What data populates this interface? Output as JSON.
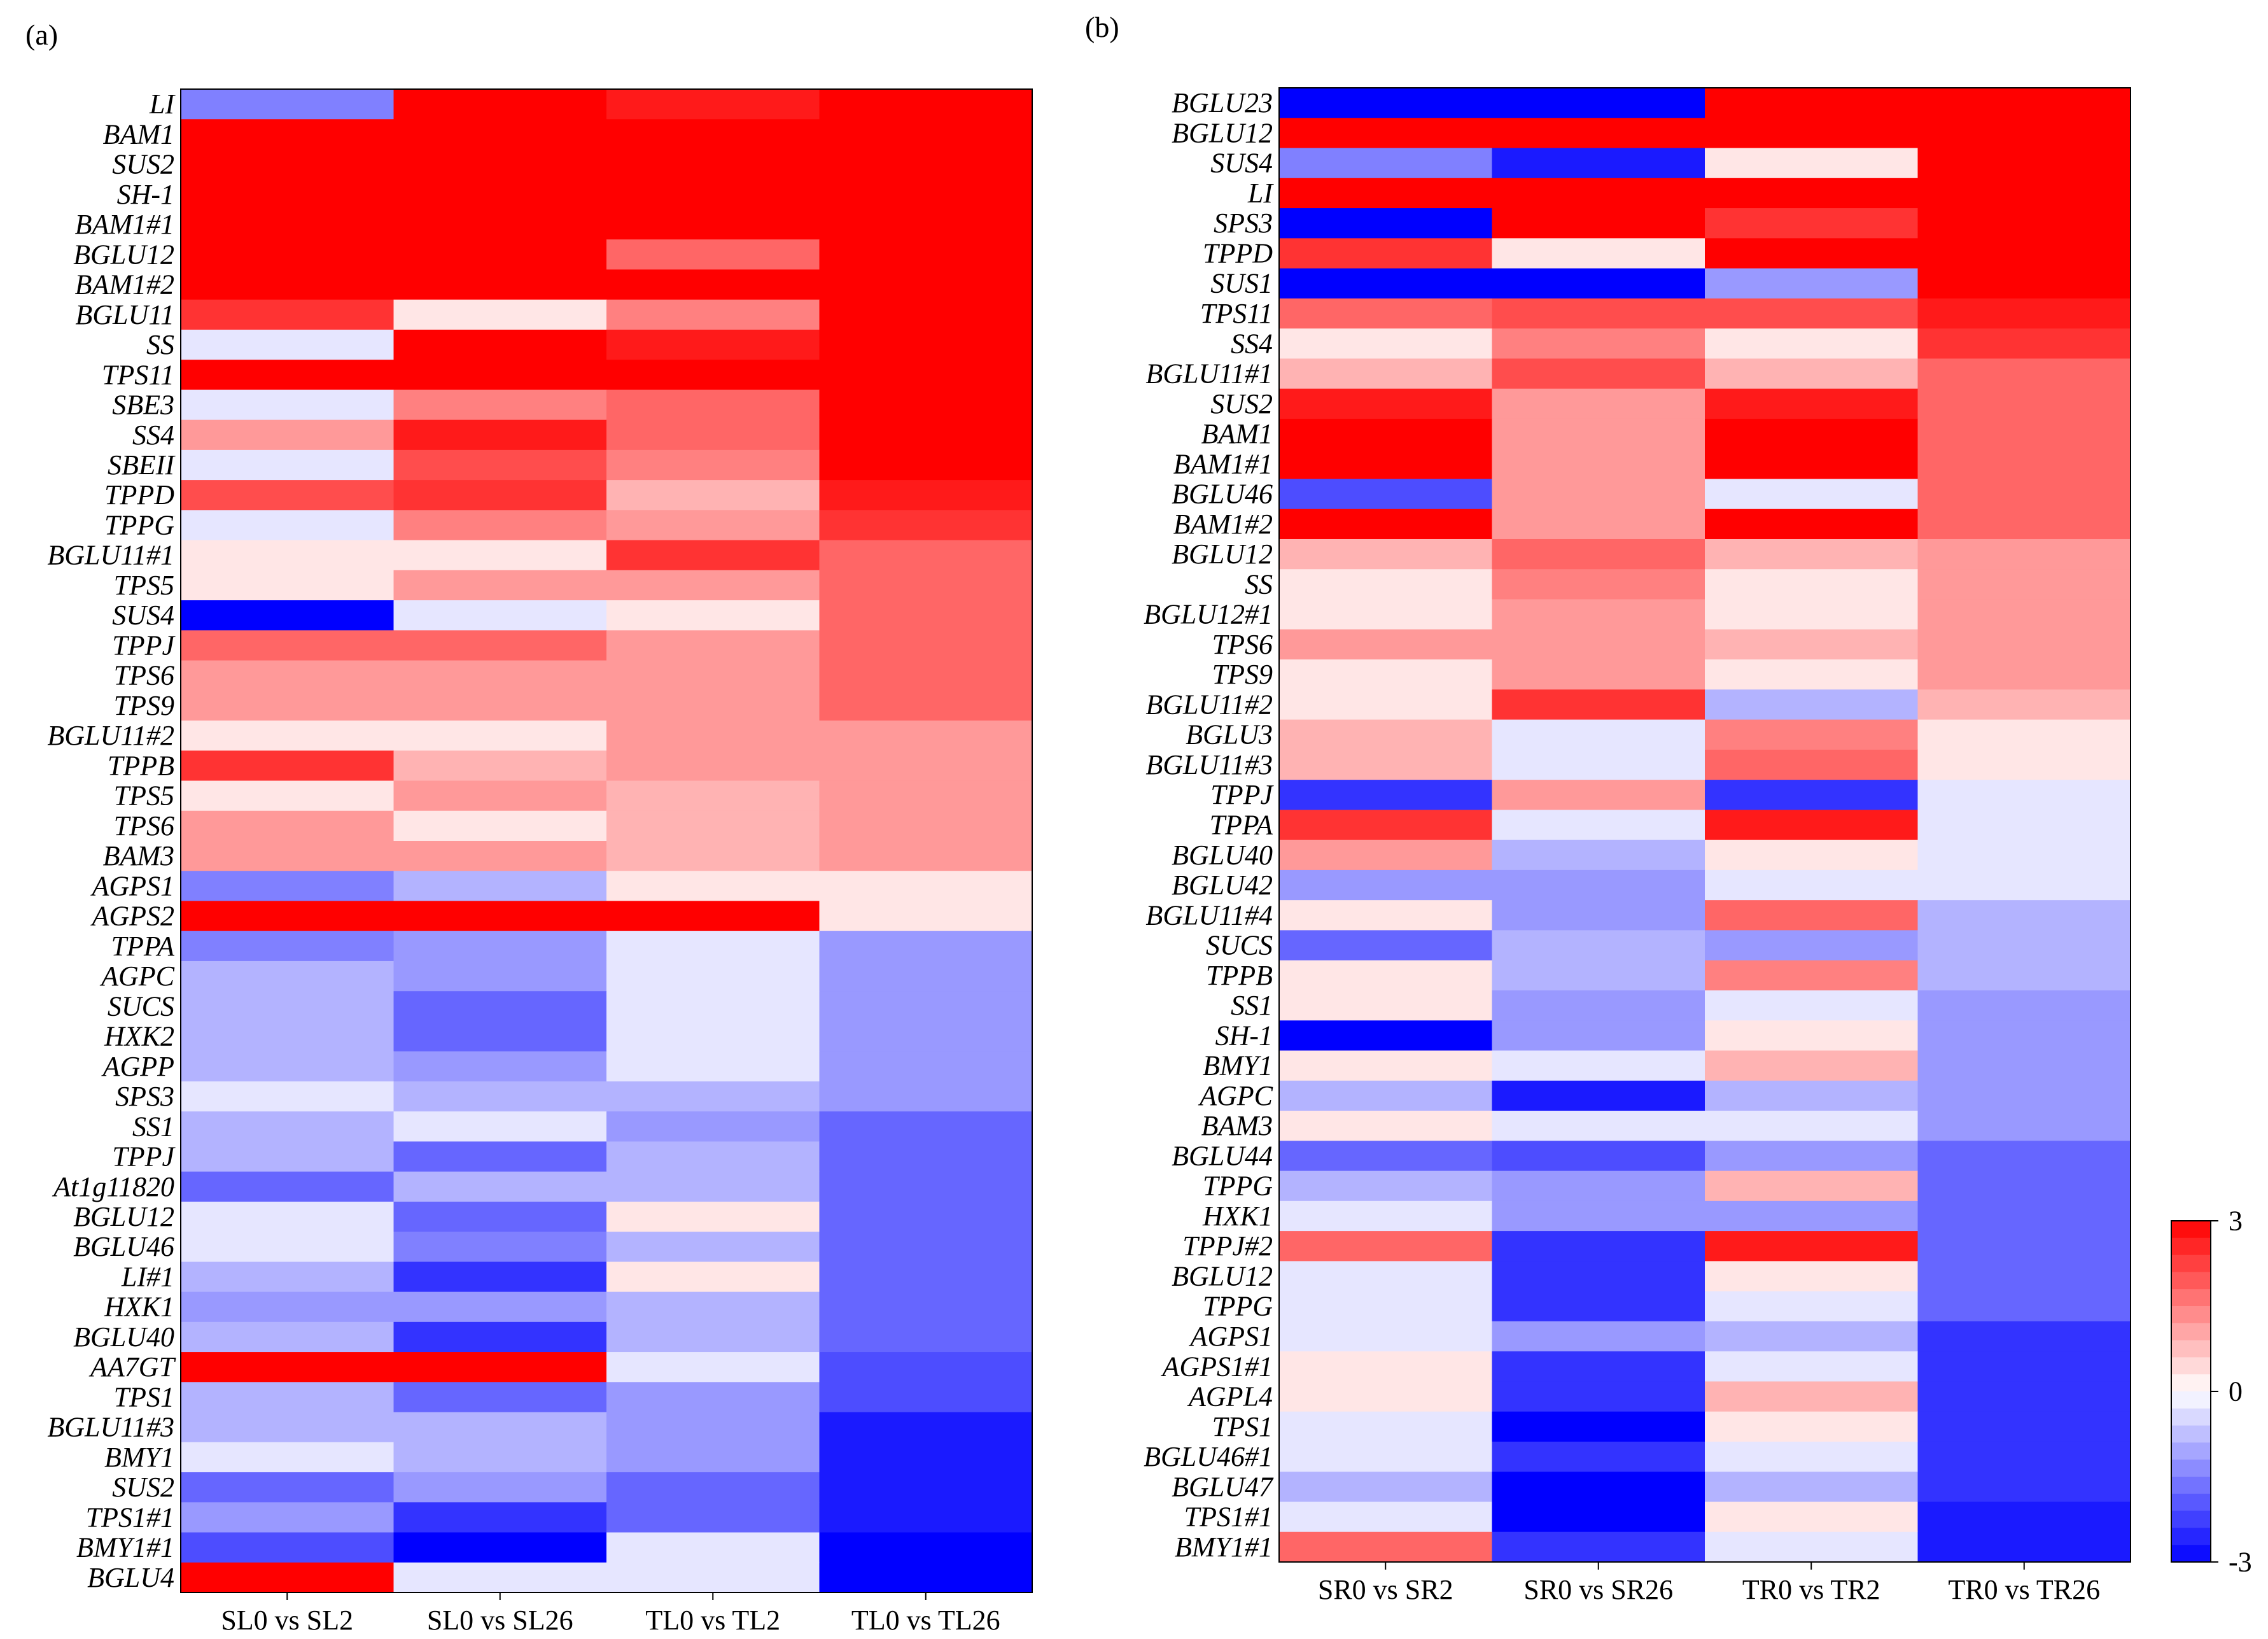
{
  "chart_data": [
    {
      "type": "heatmap",
      "panel_label": "(a)",
      "columns": [
        "SL0 vs SL2",
        "SL0 vs SL26",
        "TL0 vs TL2",
        "TL0 vs TL26"
      ],
      "genes": [
        "LI",
        "BAM1",
        "SUS2",
        "SH-1",
        "BAM1#1",
        "BGLU12",
        "BAM1#2",
        "BGLU11",
        "SS",
        "TPS11",
        "SBE3",
        "SS4",
        "SBEII",
        "TPPD",
        "TPPG",
        "BGLU11#1",
        "TPS5",
        "SUS4",
        "TPPJ",
        "TPS6",
        "TPS9",
        "BGLU11#2",
        "TPPB",
        "TPS5",
        "TPS6",
        "BAM3",
        "AGPS1",
        "AGPS2",
        "TPPA",
        "AGPC",
        "SUCS",
        "HXK2",
        "AGPP",
        "SPS3",
        "SS1",
        "TPPJ",
        "At1g11820",
        "BGLU12",
        "BGLU46",
        "LI#1",
        "HXK1",
        "BGLU40",
        "AA7GT",
        "TPS1",
        "BGLU11#3",
        "BMY1",
        "SUS2",
        "TPS1#1",
        "BMY1#1",
        "BGLU4"
      ],
      "values": [
        [
          -1.5,
          3,
          2.7,
          3
        ],
        [
          3,
          3,
          3,
          3
        ],
        [
          3,
          3,
          3,
          3
        ],
        [
          3,
          3,
          3,
          3
        ],
        [
          3,
          3,
          3,
          3
        ],
        [
          3,
          3,
          1.8,
          3
        ],
        [
          3,
          3,
          3,
          3
        ],
        [
          2.4,
          0.2,
          1.5,
          3
        ],
        [
          -0.3,
          3,
          2.7,
          3
        ],
        [
          3,
          3,
          3,
          3
        ],
        [
          -0.4,
          1.5,
          1.8,
          3
        ],
        [
          1.2,
          2.8,
          1.8,
          3
        ],
        [
          -0.4,
          2,
          1.5,
          3
        ],
        [
          2,
          2.5,
          0.9,
          2.8
        ],
        [
          -0.4,
          1.5,
          1.2,
          2.5
        ],
        [
          0.3,
          0.2,
          2.4,
          1.8
        ],
        [
          0.3,
          1.2,
          1.2,
          1.8
        ],
        [
          -3,
          -0.4,
          0.3,
          1.8
        ],
        [
          1.8,
          1.8,
          1.2,
          1.8
        ],
        [
          1.2,
          1.2,
          1.2,
          1.8
        ],
        [
          1.2,
          1.2,
          1.2,
          1.8
        ],
        [
          0.3,
          0.3,
          1.2,
          1.2
        ],
        [
          2.5,
          0.9,
          1.2,
          1.2
        ],
        [
          0.3,
          1.2,
          0.9,
          1.2
        ],
        [
          1.2,
          0.3,
          0.9,
          1.2
        ],
        [
          1.2,
          1.2,
          0.9,
          1.2
        ],
        [
          -1.5,
          -0.9,
          0.3,
          0.3
        ],
        [
          3,
          3,
          3,
          0.3
        ],
        [
          -1.5,
          -1.2,
          -0.4,
          -1.2
        ],
        [
          -0.9,
          -1.2,
          -0.3,
          -1.2
        ],
        [
          -0.9,
          -1.8,
          -0.3,
          -1.2
        ],
        [
          -0.9,
          -1.8,
          -0.3,
          -1.2
        ],
        [
          -0.9,
          -1.2,
          -0.3,
          -1.2
        ],
        [
          -0.4,
          -0.9,
          -0.9,
          -1.2
        ],
        [
          -0.9,
          -0.4,
          -1.2,
          -1.8
        ],
        [
          -0.9,
          -1.8,
          -0.9,
          -1.8
        ],
        [
          -1.8,
          -0.9,
          -0.9,
          -1.8
        ],
        [
          -0.4,
          -1.8,
          0.3,
          -1.8
        ],
        [
          -0.4,
          -1.5,
          -0.9,
          -1.8
        ],
        [
          -0.9,
          -2.4,
          0.3,
          -1.8
        ],
        [
          -1.2,
          -1.2,
          -0.9,
          -1.8
        ],
        [
          -0.9,
          -2.4,
          -0.9,
          -1.8
        ],
        [
          3,
          3,
          -0.4,
          -2.1
        ],
        [
          -0.9,
          -1.8,
          -1.2,
          -2.1
        ],
        [
          -0.9,
          -0.9,
          -1.2,
          -2.7
        ],
        [
          -0.4,
          -0.9,
          -1.2,
          -2.7
        ],
        [
          -1.8,
          -1.2,
          -1.8,
          -2.7
        ],
        [
          -1.2,
          -2.4,
          -1.8,
          -2.7
        ],
        [
          -2.1,
          -3,
          -0.4,
          -3
        ],
        [
          3,
          -0.4,
          -0.4,
          -3
        ]
      ]
    },
    {
      "type": "heatmap",
      "panel_label": "(b)",
      "columns": [
        "SR0 vs SR2",
        "SR0 vs SR26",
        "TR0 vs TR2",
        "TR0 vs TR26"
      ],
      "genes": [
        "BGLU23",
        "BGLU12",
        "SUS4",
        "LI",
        "SPS3",
        "TPPD",
        "SUS1",
        "TPS11",
        "SS4",
        "BGLU11#1",
        "SUS2",
        "BAM1",
        "BAM1#1",
        "BGLU46",
        "BAM1#2",
        "BGLU12",
        "SS",
        "BGLU12#1",
        "TPS6",
        "TPS9",
        "BGLU11#2",
        "BGLU3",
        "BGLU11#3",
        "TPPJ",
        "TPPA",
        "BGLU40",
        "BGLU42",
        "BGLU11#4",
        "SUCS",
        "TPPB",
        "SS1",
        "SH-1",
        "BMY1",
        "AGPC",
        "BAM3",
        "BGLU44",
        "TPPG",
        "HXK1",
        "TPPJ#2",
        "BGLU12",
        "TPPG",
        "AGPS1",
        "AGPS1#1",
        "AGPL4",
        "TPS1",
        "BGLU46#1",
        "BGLU47",
        "TPS1#1",
        "BMY1#1"
      ],
      "values": [
        [
          -3,
          -3,
          3,
          3
        ],
        [
          3,
          3,
          3,
          3
        ],
        [
          -1.5,
          -2.7,
          0.2,
          3
        ],
        [
          3,
          3,
          3,
          3
        ],
        [
          -3,
          3,
          2.4,
          3
        ],
        [
          2.4,
          0.2,
          3,
          3
        ],
        [
          -3,
          -3,
          -1.2,
          3
        ],
        [
          1.8,
          2.2,
          2.2,
          2.7
        ],
        [
          0.4,
          1.5,
          0.4,
          2.4
        ],
        [
          0.9,
          2.2,
          0.9,
          1.8
        ],
        [
          2.7,
          1.2,
          2.7,
          1.8
        ],
        [
          3,
          1.2,
          3,
          1.8
        ],
        [
          3,
          1.2,
          3,
          1.8
        ],
        [
          -2.1,
          1.2,
          -0.3,
          1.8
        ],
        [
          3,
          1.2,
          3,
          1.8
        ],
        [
          0.9,
          1.8,
          0.9,
          1.2
        ],
        [
          0.4,
          1.5,
          0.4,
          1.2
        ],
        [
          0.4,
          1.2,
          0.4,
          1.2
        ],
        [
          1.2,
          1.2,
          0.9,
          1.2
        ],
        [
          0.4,
          1.2,
          0.4,
          1.2
        ],
        [
          0.4,
          2.4,
          -0.9,
          0.9
        ],
        [
          0.9,
          -0.4,
          1.5,
          0.4
        ],
        [
          0.9,
          -0.4,
          1.8,
          0.4
        ],
        [
          -2.4,
          1.2,
          -2.4,
          -0.3
        ],
        [
          2.4,
          -0.3,
          2.7,
          -0.3
        ],
        [
          1.2,
          -0.9,
          0.4,
          -0.3
        ],
        [
          -1.2,
          -1.2,
          -0.3,
          -0.3
        ],
        [
          0.4,
          -1.2,
          1.8,
          -0.9
        ],
        [
          -1.8,
          -0.9,
          -1.2,
          -0.9
        ],
        [
          0.4,
          -0.9,
          1.5,
          -0.9
        ],
        [
          0.4,
          -1.2,
          -0.4,
          -1.2
        ],
        [
          -3,
          -1.2,
          0.4,
          -1.2
        ],
        [
          0.4,
          -0.4,
          0.9,
          -1.2
        ],
        [
          -0.9,
          -2.7,
          -0.9,
          -1.2
        ],
        [
          0.4,
          -0.4,
          -0.4,
          -1.2
        ],
        [
          -1.8,
          -2.1,
          -1.2,
          -1.8
        ],
        [
          -0.9,
          -1.2,
          0.9,
          -1.8
        ],
        [
          -0.4,
          -1.2,
          -1.2,
          -1.8
        ],
        [
          1.8,
          -2.4,
          2.7,
          -1.8
        ],
        [
          -0.4,
          -2.4,
          0.4,
          -1.8
        ],
        [
          -0.4,
          -2.4,
          -0.4,
          -1.8
        ],
        [
          -0.4,
          -1.2,
          -0.9,
          -2.4
        ],
        [
          0.4,
          -2.4,
          -0.4,
          -2.4
        ],
        [
          0.4,
          -2.4,
          0.9,
          -2.4
        ],
        [
          -0.4,
          -3,
          0.4,
          -2.4
        ],
        [
          -0.4,
          -2.4,
          -0.4,
          -2.4
        ],
        [
          -0.9,
          -3,
          -0.9,
          -2.4
        ],
        [
          -0.4,
          -3,
          0.4,
          -2.7
        ],
        [
          1.8,
          -2.4,
          -0.4,
          -2.7
        ]
      ]
    }
  ],
  "colorbar": {
    "min": -3,
    "max": 3,
    "tick_labels": [
      "3",
      "0",
      "-3"
    ],
    "low_color": "#0000ff",
    "mid_color": "#ffffff",
    "high_color": "#ff0000"
  }
}
